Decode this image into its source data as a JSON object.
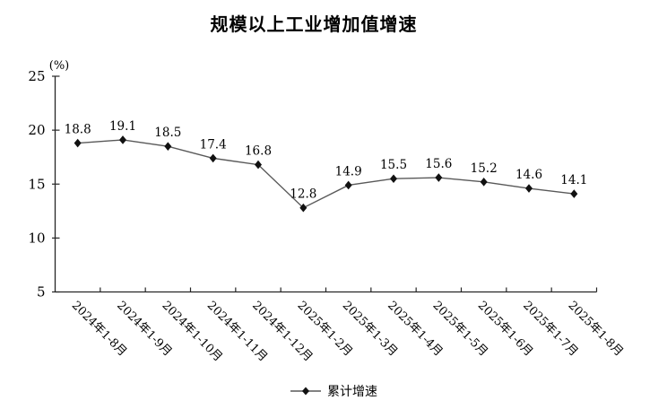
{
  "chart_data": {
    "type": "line",
    "title": "规模以上工业增加值增速",
    "unit_label": "(%)",
    "categories": [
      "2024年1-8月",
      "2024年1-9月",
      "2024年1-10月",
      "2024年1-11月",
      "2024年1-12月",
      "2025年1-2月",
      "2025年1-3月",
      "2025年1-4月",
      "2025年1-5月",
      "2025年1-6月",
      "2025年1-7月",
      "2025年1-8月"
    ],
    "series": [
      {
        "name": "累计增速",
        "values": [
          18.8,
          19.1,
          18.5,
          17.4,
          16.8,
          12.8,
          14.9,
          15.5,
          15.6,
          15.2,
          14.6,
          14.1
        ]
      }
    ],
    "ylim": [
      5,
      25
    ],
    "yticks": [
      5,
      10,
      15,
      20,
      25
    ],
    "grid": false,
    "data_labels": true,
    "legend_position": "bottom",
    "marker": "diamond",
    "colors": {
      "line": "#595959",
      "marker": "#111111",
      "axis": "#262626",
      "text": "#000000",
      "background": "#ffffff"
    }
  }
}
